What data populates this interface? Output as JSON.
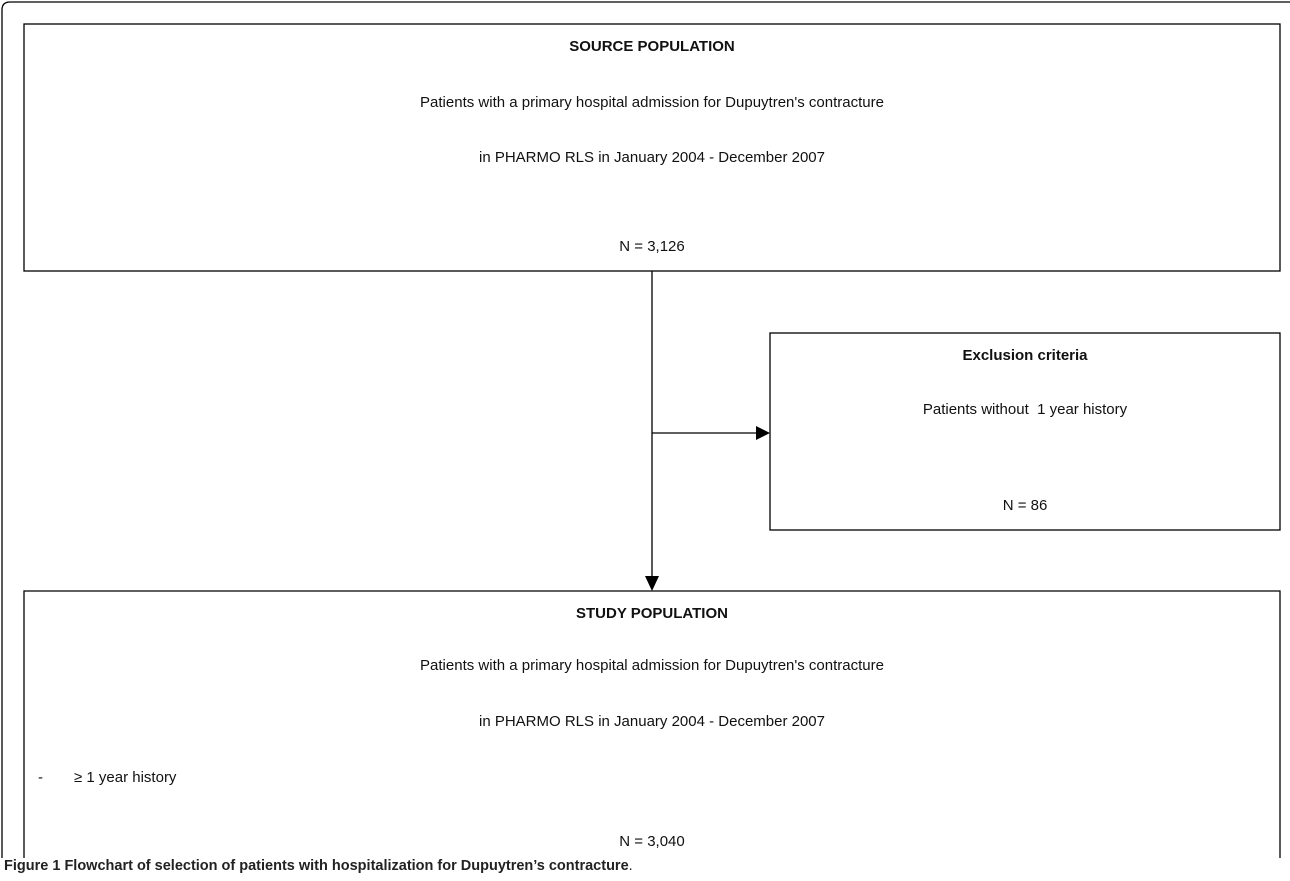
{
  "nodes": [
    {
      "title": "SOURCE POPULATION",
      "lines": [
        "Patients with a primary hospital admission for Dupuytren's contracture",
        "in PHARMO RLS in January 2004 - December 2007"
      ],
      "count": "N = 3,126"
    },
    {
      "title": "Exclusion criteria",
      "lines": [
        "Patients without  1 year history"
      ],
      "count": "N = 86"
    },
    {
      "title": "STUDY POPULATION",
      "lines": [
        "Patients with a primary hospital admission for Dupuytren's contracture",
        "in PHARMO RLS in January 2004 - December 2007"
      ],
      "criteria": {
        "marker": "-",
        "text": "≥ 1 year history"
      },
      "count": "N = 3,040"
    }
  ],
  "caption": {
    "label": "Figure 1",
    "text": "Flowchart of selection of patients with hospitalization for Dupuytren’s contracture",
    "end": "."
  }
}
